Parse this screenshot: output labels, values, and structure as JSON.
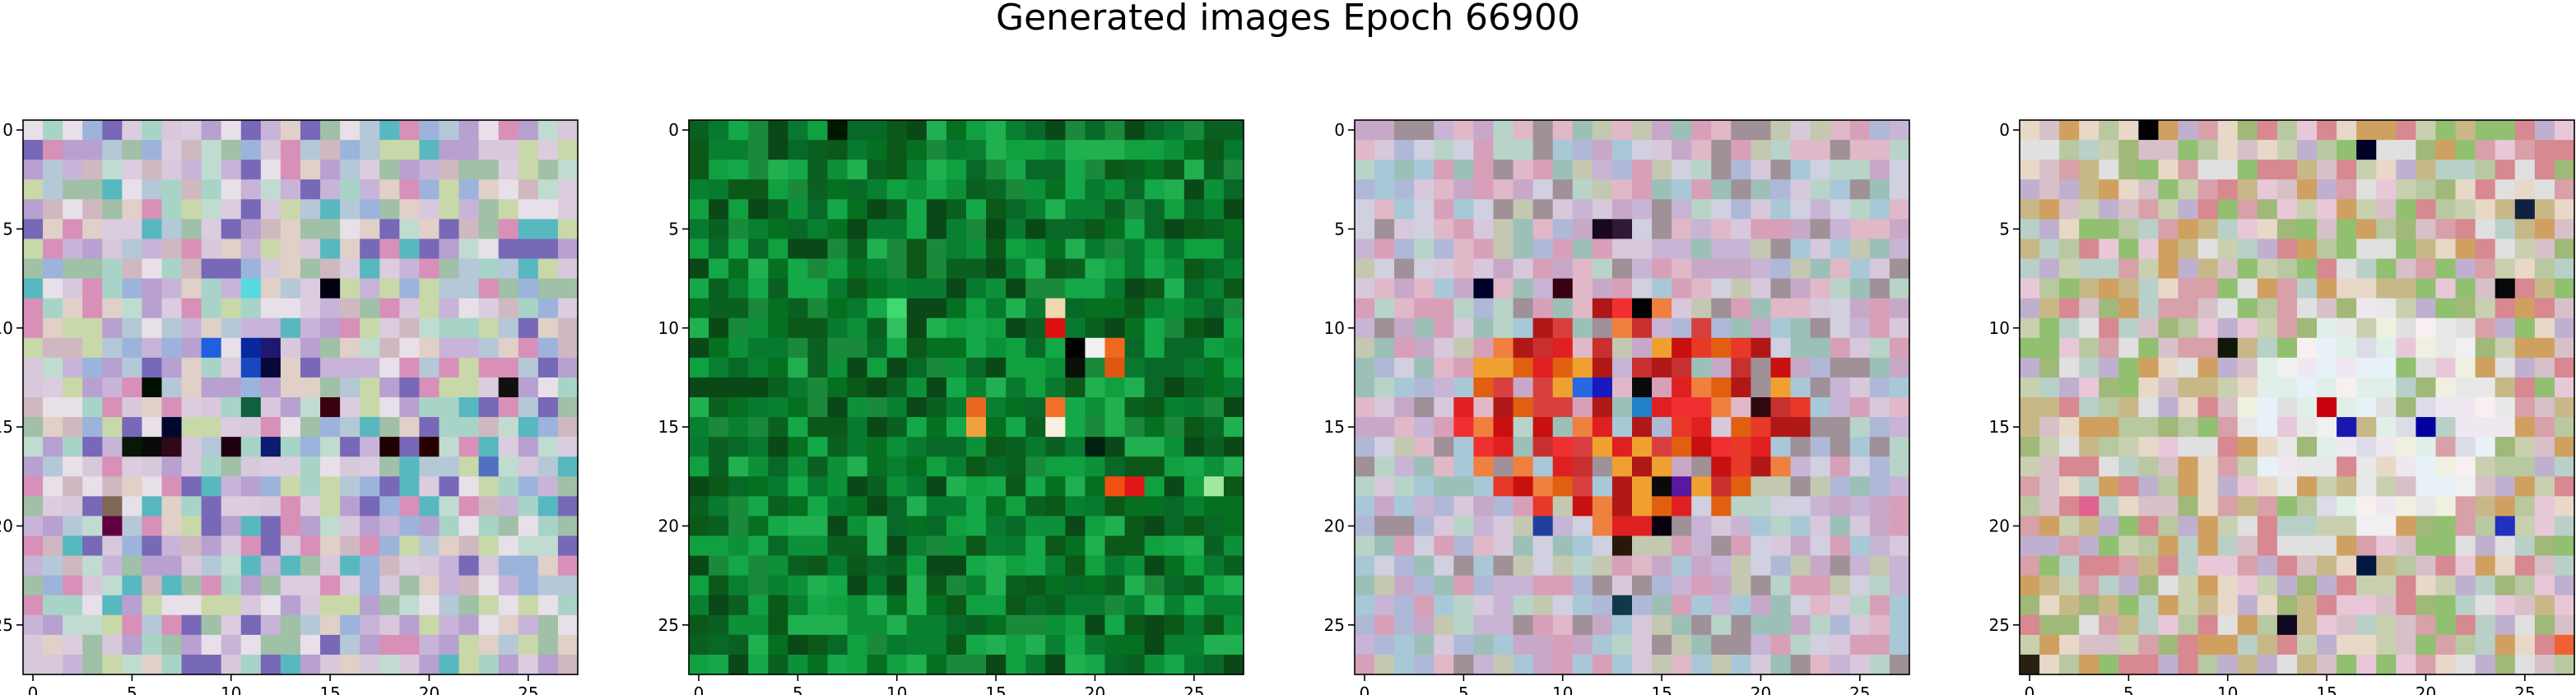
{
  "title": "Generated images Epoch 66900",
  "chart_data": {
    "type": "heatmap",
    "title": "Generated images Epoch 66900",
    "description": "4 RGB image subplots, 28x28 pixels each (imshow)",
    "image_size": 28,
    "xticks": [
      0,
      5,
      10,
      15,
      20,
      25
    ],
    "yticks": [
      0,
      5,
      10,
      15,
      20,
      25
    ],
    "xlim": [
      -0.5,
      27.5
    ],
    "ylim": [
      27.5,
      -0.5
    ],
    "panels": [
      {
        "palette": [
          "#c8b4d8",
          "#b4c8d8",
          "#d8c8dc",
          "#a8d4c8",
          "#dccce0",
          "#9cb4dc",
          "#e0d0c8",
          "#b8a0d0",
          "#c0dcd0",
          "#d0b8c0",
          "#a0c0a8",
          "#e8e0e8",
          "#7868b8",
          "#58b8c0",
          "#d890b8",
          "#c8d8a8"
        ],
        "accents": [
          {
            "row": 11,
            "col": 11,
            "color": "#0828a0"
          },
          {
            "row": 11,
            "col": 12,
            "color": "#201870"
          },
          {
            "row": 12,
            "col": 11,
            "color": "#1848c0"
          },
          {
            "row": 12,
            "col": 12,
            "color": "#080838"
          },
          {
            "row": 13,
            "col": 6,
            "color": "#001000"
          },
          {
            "row": 14,
            "col": 15,
            "color": "#380010"
          },
          {
            "row": 13,
            "col": 24,
            "color": "#101010"
          },
          {
            "row": 8,
            "col": 15,
            "color": "#000010"
          },
          {
            "row": 15,
            "col": 7,
            "color": "#000830"
          },
          {
            "row": 16,
            "col": 5,
            "color": "#081808"
          },
          {
            "row": 16,
            "col": 6,
            "color": "#0a0a0a"
          },
          {
            "row": 16,
            "col": 7,
            "color": "#300818"
          },
          {
            "row": 16,
            "col": 10,
            "color": "#200010"
          },
          {
            "row": 16,
            "col": 12,
            "color": "#0c1c70"
          },
          {
            "row": 16,
            "col": 18,
            "color": "#200000"
          },
          {
            "row": 16,
            "col": 20,
            "color": "#280000"
          },
          {
            "row": 14,
            "col": 11,
            "color": "#106040"
          },
          {
            "row": 19,
            "col": 4,
            "color": "#806858"
          },
          {
            "row": 20,
            "col": 4,
            "color": "#600040"
          },
          {
            "row": 8,
            "col": 11,
            "color": "#58d8e0"
          },
          {
            "row": 11,
            "col": 9,
            "color": "#2060e0"
          },
          {
            "row": 17,
            "col": 23,
            "color": "#5070c0"
          }
        ]
      },
      {
        "palette": [
          "#088030",
          "#0a6020",
          "#0c9038",
          "#086828",
          "#10a040",
          "#047020",
          "#1a8a3a",
          "#0c5818",
          "#14a848",
          "#087a30",
          "#20b050",
          "#0a4818"
        ],
        "accents": [
          {
            "row": 9,
            "col": 18,
            "color": "#f0d8b0"
          },
          {
            "row": 10,
            "col": 18,
            "color": "#e01010"
          },
          {
            "row": 11,
            "col": 20,
            "color": "#f0f0f0"
          },
          {
            "row": 11,
            "col": 21,
            "color": "#f06820"
          },
          {
            "row": 12,
            "col": 21,
            "color": "#e05810"
          },
          {
            "row": 14,
            "col": 14,
            "color": "#e86820"
          },
          {
            "row": 15,
            "col": 14,
            "color": "#f0a040"
          },
          {
            "row": 14,
            "col": 18,
            "color": "#f07028"
          },
          {
            "row": 15,
            "col": 18,
            "color": "#f8f0e0"
          },
          {
            "row": 18,
            "col": 21,
            "color": "#f05010"
          },
          {
            "row": 18,
            "col": 22,
            "color": "#e01818"
          },
          {
            "row": 18,
            "col": 26,
            "color": "#a0e8a0"
          },
          {
            "row": 11,
            "col": 19,
            "color": "#000000"
          },
          {
            "row": 12,
            "col": 19,
            "color": "#081008"
          },
          {
            "row": 16,
            "col": 20,
            "color": "#002010"
          },
          {
            "row": 0,
            "col": 7,
            "color": "#001800"
          },
          {
            "row": 9,
            "col": 10,
            "color": "#40d870"
          },
          {
            "row": 10,
            "col": 10,
            "color": "#30c060"
          }
        ]
      },
      {
        "palette": [
          "#c8b4d4",
          "#d8c8dc",
          "#a8c8d8",
          "#e0b8c8",
          "#b8d4c8",
          "#c8a8c8",
          "#d0d0e0",
          "#b0b8d8",
          "#a09098",
          "#d8a0b8",
          "#c4c8b0",
          "#9cc0b8"
        ],
        "center_palette": [
          "#e02020",
          "#c81010",
          "#f03030",
          "#e06010",
          "#d84040",
          "#f08040",
          "#b01818",
          "#e83828",
          "#c83030",
          "#f0a030"
        ],
        "center_box": {
          "row0": 9,
          "row1": 20,
          "col0": 5,
          "col1": 22
        },
        "accents": [
          {
            "row": 5,
            "col": 12,
            "color": "#180820"
          },
          {
            "row": 5,
            "col": 13,
            "color": "#301838"
          },
          {
            "row": 8,
            "col": 6,
            "color": "#000028"
          },
          {
            "row": 8,
            "col": 10,
            "color": "#380010"
          },
          {
            "row": 13,
            "col": 12,
            "color": "#1818c0"
          },
          {
            "row": 13,
            "col": 14,
            "color": "#0a0a0a"
          },
          {
            "row": 13,
            "col": 11,
            "color": "#2868e0"
          },
          {
            "row": 14,
            "col": 14,
            "color": "#2080c8"
          },
          {
            "row": 18,
            "col": 15,
            "color": "#0a0a0a"
          },
          {
            "row": 18,
            "col": 16,
            "color": "#5818a0"
          },
          {
            "row": 20,
            "col": 15,
            "color": "#080010"
          },
          {
            "row": 21,
            "col": 13,
            "color": "#281808"
          },
          {
            "row": 24,
            "col": 13,
            "color": "#103848"
          },
          {
            "row": 9,
            "col": 14,
            "color": "#000000"
          },
          {
            "row": 14,
            "col": 20,
            "color": "#300810"
          },
          {
            "row": 20,
            "col": 9,
            "color": "#2040a0"
          }
        ]
      },
      {
        "palette": [
          "#d8c0c8",
          "#c8d0b0",
          "#e8c8d8",
          "#b8c8a0",
          "#d8a0a8",
          "#c0b0d0",
          "#e0e0e0",
          "#a0b878",
          "#d0a060",
          "#b8d0c8",
          "#c8b888",
          "#e8d8c8",
          "#90c070",
          "#d88890"
        ],
        "center_palette": [
          "#f0f0f0",
          "#e8e8e8",
          "#f0e8f0",
          "#e0f0e8",
          "#f8f0f0",
          "#e8f0f8",
          "#dcdce8",
          "#f0f0e0"
        ],
        "center_box": {
          "row0": 9,
          "row1": 20,
          "col0": 11,
          "col1": 24
        },
        "accents": [
          {
            "row": 0,
            "col": 6,
            "color": "#000000"
          },
          {
            "row": 1,
            "col": 17,
            "color": "#000028"
          },
          {
            "row": 8,
            "col": 24,
            "color": "#080808"
          },
          {
            "row": 14,
            "col": 15,
            "color": "#c80010"
          },
          {
            "row": 15,
            "col": 16,
            "color": "#1818b0"
          },
          {
            "row": 15,
            "col": 20,
            "color": "#0000a0"
          },
          {
            "row": 20,
            "col": 24,
            "color": "#2030c0"
          },
          {
            "row": 25,
            "col": 13,
            "color": "#100820"
          },
          {
            "row": 22,
            "col": 17,
            "color": "#001840"
          },
          {
            "row": 11,
            "col": 10,
            "color": "#101808"
          },
          {
            "row": 4,
            "col": 25,
            "color": "#102040"
          },
          {
            "row": 19,
            "col": 3,
            "color": "#e06090"
          },
          {
            "row": 27,
            "col": 0,
            "color": "#282010"
          },
          {
            "row": 26,
            "col": 27,
            "color": "#f06030"
          }
        ]
      }
    ]
  }
}
